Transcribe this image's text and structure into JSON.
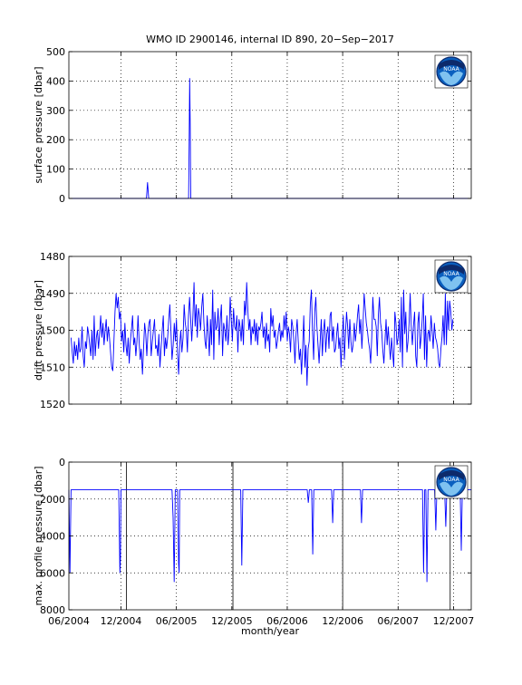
{
  "title": "WMO ID 2900146, internal ID 890, 20−Sep−2017",
  "xlabel": "month/year",
  "logo_text": "NOAA",
  "colors": {
    "line": "#0000ff",
    "axis": "#000000",
    "grid": "#000000",
    "logo_blue": "#0a5fbf",
    "logo_navy": "#0d2a6b"
  },
  "chart_data": [
    {
      "type": "line",
      "name": "surface",
      "ylabel": "surface pressure [dbar]",
      "ylim": [
        0,
        500
      ],
      "y_reversed": false,
      "yticks": [
        0,
        100,
        200,
        300,
        400,
        500
      ],
      "xlim": [
        2004.45,
        2008.08
      ],
      "xticks": [
        2004.42,
        2004.92,
        2005.42,
        2005.92,
        2006.42,
        2006.92,
        2007.42,
        2007.92
      ],
      "grid": true,
      "points": [
        [
          2004.45,
          0
        ],
        [
          2005.15,
          0
        ],
        [
          2005.16,
          55
        ],
        [
          2005.17,
          0
        ],
        [
          2005.53,
          0
        ],
        [
          2005.535,
          180
        ],
        [
          2005.54,
          410
        ],
        [
          2005.545,
          250
        ],
        [
          2005.55,
          0
        ],
        [
          2008.08,
          0
        ]
      ]
    },
    {
      "type": "line",
      "name": "drift",
      "ylabel": "drift pressure [dbar]",
      "ylim": [
        1480,
        1520
      ],
      "y_reversed": true,
      "yticks": [
        1480,
        1490,
        1500,
        1510,
        1520
      ],
      "xlim": [
        2004.45,
        2008.08
      ],
      "xticks": [
        2004.42,
        2004.92,
        2005.42,
        2005.92,
        2006.42,
        2006.92,
        2007.42,
        2007.92
      ],
      "grid": true,
      "x_start": 2004.47,
      "x_step": 0.0099,
      "values": [
        1502,
        1506,
        1509,
        1503,
        1507,
        1504,
        1508,
        1502,
        1506,
        1505,
        1499,
        1507,
        1510,
        1503,
        1505,
        1499,
        1501,
        1504,
        1507,
        1500,
        1508,
        1496,
        1507,
        1502,
        1500,
        1505,
        1501,
        1496,
        1502,
        1498,
        1504,
        1500,
        1497,
        1503,
        1499,
        1502,
        1506,
        1510,
        1511,
        1503,
        1495,
        1490,
        1494,
        1491,
        1497,
        1495,
        1503,
        1500,
        1506,
        1498,
        1504,
        1507,
        1502,
        1509,
        1503,
        1500,
        1496,
        1504,
        1502,
        1507,
        1503,
        1496,
        1503,
        1508,
        1505,
        1512,
        1505,
        1498,
        1501,
        1507,
        1501,
        1498,
        1497,
        1507,
        1503,
        1500,
        1497,
        1505,
        1504,
        1507,
        1501,
        1510,
        1505,
        1500,
        1496,
        1507,
        1502,
        1505,
        1502,
        1497,
        1493,
        1500,
        1508,
        1504,
        1498,
        1503,
        1497,
        1506,
        1512,
        1504,
        1500,
        1506,
        1502,
        1493,
        1498,
        1500,
        1506,
        1496,
        1491,
        1497,
        1503,
        1496,
        1487,
        1499,
        1493,
        1502,
        1494,
        1496,
        1500,
        1494,
        1490,
        1498,
        1503,
        1505,
        1496,
        1501,
        1507,
        1497,
        1504,
        1489,
        1508,
        1495,
        1500,
        1499,
        1494,
        1504,
        1497,
        1493,
        1507,
        1498,
        1500,
        1503,
        1496,
        1504,
        1500,
        1491,
        1497,
        1503,
        1494,
        1499,
        1500,
        1496,
        1506,
        1497,
        1499,
        1503,
        1497,
        1504,
        1492,
        1496,
        1487,
        1494,
        1500,
        1497,
        1504,
        1499,
        1501,
        1497,
        1503,
        1498,
        1504,
        1499,
        1500,
        1498,
        1495,
        1502,
        1499,
        1505,
        1498,
        1503,
        1501,
        1506,
        1494,
        1499,
        1496,
        1502,
        1500,
        1505,
        1503,
        1500,
        1498,
        1503,
        1500,
        1502,
        1496,
        1500,
        1495,
        1503,
        1499,
        1501,
        1506,
        1497,
        1499,
        1503,
        1509,
        1501,
        1497,
        1503,
        1508,
        1505,
        1512,
        1505,
        1496,
        1510,
        1504,
        1515,
        1505,
        1503,
        1493,
        1489,
        1500,
        1508,
        1495,
        1491,
        1499,
        1504,
        1509,
        1503,
        1497,
        1507,
        1500,
        1497,
        1506,
        1501,
        1499,
        1505,
        1496,
        1495,
        1503,
        1499,
        1506,
        1505,
        1501,
        1498,
        1505,
        1502,
        1510,
        1503,
        1496,
        1508,
        1501,
        1495,
        1499,
        1505,
        1497,
        1503,
        1506,
        1504,
        1498,
        1503,
        1500,
        1496,
        1493,
        1501,
        1497,
        1505,
        1499,
        1490,
        1494,
        1498,
        1500,
        1503,
        1505,
        1509,
        1502,
        1491,
        1497,
        1497,
        1499,
        1507,
        1496,
        1491,
        1498,
        1500,
        1505,
        1509,
        1503,
        1497,
        1504,
        1499,
        1504,
        1508,
        1502,
        1506,
        1510,
        1495,
        1498,
        1504,
        1502,
        1497,
        1506,
        1491,
        1510,
        1489,
        1501,
        1495,
        1506,
        1503,
        1498,
        1490,
        1499,
        1504,
        1499,
        1495,
        1507,
        1510,
        1498,
        1495,
        1505,
        1502,
        1497,
        1490,
        1508,
        1496,
        1510,
        1501,
        1500,
        1503,
        1496,
        1500,
        1505,
        1498,
        1502,
        1503,
        1505,
        1509,
        1510,
        1505,
        1502,
        1496,
        1504,
        1490,
        1504,
        1492,
        1500,
        1492,
        1495,
        1500,
        1497
      ]
    },
    {
      "type": "line",
      "name": "maxprofile",
      "ylabel": "max. profile pressure [dbar]",
      "ylim": [
        0,
        8000
      ],
      "y_reversed": true,
      "yticks": [
        0,
        2000,
        4000,
        6000,
        8000
      ],
      "xlim": [
        2004.45,
        2008.08
      ],
      "xticks": [
        2004.42,
        2004.92,
        2005.42,
        2005.92,
        2006.42,
        2006.92,
        2007.42,
        2007.92
      ],
      "xticklabels": [
        "06/2004",
        "12/2004",
        "06/2005",
        "12/2005",
        "06/2006",
        "12/2006",
        "06/2007",
        "12/2007"
      ],
      "grid": true,
      "vlines": [
        2004.97,
        2005.93,
        2006.92,
        2007.89
      ],
      "points": [
        [
          2004.45,
          1500
        ],
        [
          2004.46,
          6000
        ],
        [
          2004.47,
          1500
        ],
        [
          2004.9,
          1500
        ],
        [
          2004.91,
          6000
        ],
        [
          2004.915,
          5200
        ],
        [
          2004.92,
          1500
        ],
        [
          2005.38,
          1500
        ],
        [
          2005.39,
          3000
        ],
        [
          2005.4,
          6500
        ],
        [
          2005.41,
          1500
        ],
        [
          2005.43,
          1500
        ],
        [
          2005.44,
          5500
        ],
        [
          2005.445,
          6000
        ],
        [
          2005.45,
          1500
        ],
        [
          2006.0,
          1500
        ],
        [
          2006.01,
          5600
        ],
        [
          2006.02,
          1500
        ],
        [
          2006.6,
          1500
        ],
        [
          2006.61,
          2200
        ],
        [
          2006.62,
          1500
        ],
        [
          2006.64,
          1500
        ],
        [
          2006.65,
          5000
        ],
        [
          2006.66,
          1500
        ],
        [
          2006.82,
          1500
        ],
        [
          2006.83,
          3300
        ],
        [
          2006.84,
          1500
        ],
        [
          2007.08,
          1500
        ],
        [
          2007.09,
          3300
        ],
        [
          2007.1,
          1500
        ],
        [
          2007.64,
          1500
        ],
        [
          2007.65,
          6000
        ],
        [
          2007.66,
          1500
        ],
        [
          2007.67,
          1500
        ],
        [
          2007.68,
          6500
        ],
        [
          2007.69,
          1500
        ],
        [
          2007.75,
          1500
        ],
        [
          2007.76,
          3700
        ],
        [
          2007.77,
          1500
        ],
        [
          2007.84,
          1500
        ],
        [
          2007.85,
          3500
        ],
        [
          2007.86,
          1500
        ],
        [
          2007.98,
          1500
        ],
        [
          2007.99,
          4800
        ],
        [
          2008.0,
          1500
        ],
        [
          2008.08,
          1500
        ]
      ]
    }
  ]
}
